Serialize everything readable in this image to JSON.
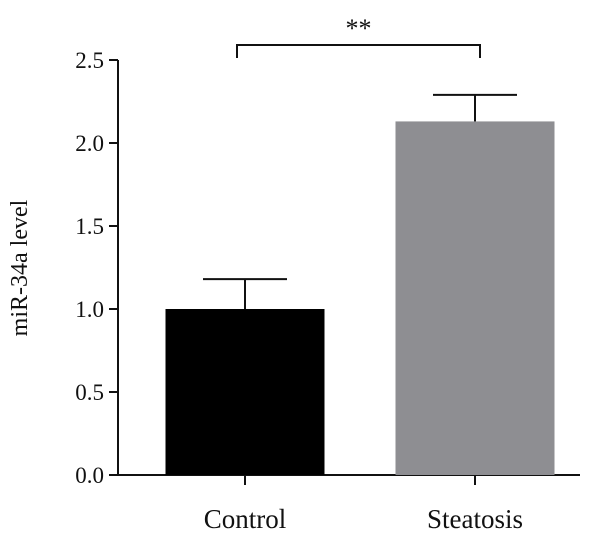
{
  "chart_data": {
    "type": "bar",
    "categories": [
      "Control",
      "Steatosis"
    ],
    "values": [
      1.0,
      2.13
    ],
    "error_upper": [
      1.18,
      2.29
    ],
    "bar_colors": [
      "#000000",
      "#8e8e92"
    ],
    "ylabel": "miR-34a level",
    "xlabel": "",
    "ylim": [
      0,
      2.5
    ],
    "yticks": [
      0.0,
      0.5,
      1.0,
      1.5,
      2.0,
      2.5
    ],
    "ytick_labels": [
      "0.0",
      "0.5",
      "1.0",
      "1.5",
      "2.0",
      "2.5"
    ],
    "significance": {
      "between": [
        "Control",
        "Steatosis"
      ],
      "label": "**"
    },
    "grid": false,
    "legend": "none"
  }
}
